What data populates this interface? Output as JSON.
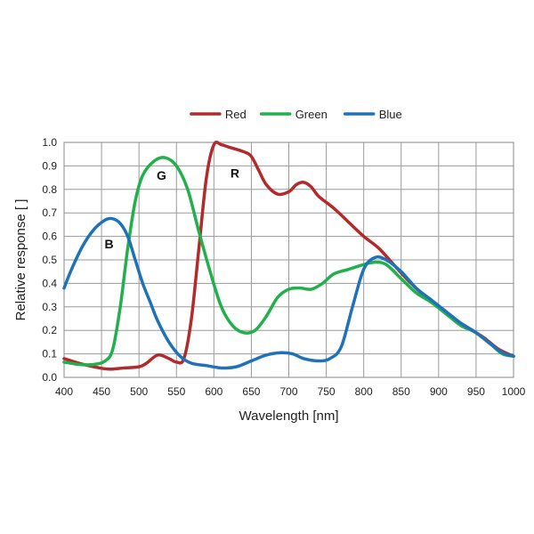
{
  "chart_data": {
    "type": "line",
    "title": "",
    "xlabel": "Wavelength [nm]",
    "ylabel": "Relative response [ ]",
    "xlim": [
      400,
      1000
    ],
    "ylim": [
      0,
      1
    ],
    "x_ticks": [
      400,
      450,
      500,
      550,
      600,
      650,
      700,
      750,
      800,
      850,
      900,
      950,
      1000
    ],
    "y_ticks": [
      0.0,
      0.1,
      0.2,
      0.3,
      0.4,
      0.5,
      0.6,
      0.7,
      0.8,
      0.9,
      1.0
    ],
    "x_tick_labels": [
      "400",
      "450",
      "500",
      "550",
      "600",
      "650",
      "700",
      "750",
      "800",
      "850",
      "900",
      "950",
      "1000"
    ],
    "y_tick_labels": [
      "0.0",
      "0.1",
      "0.2",
      "0.3",
      "0.4",
      "0.5",
      "0.6",
      "0.7",
      "0.8",
      "0.9",
      "1.0"
    ],
    "grid": true,
    "legend_position": "top-center",
    "series": [
      {
        "name": "Red",
        "color": "#b22a2a",
        "points": [
          [
            400,
            0.08
          ],
          [
            420,
            0.06
          ],
          [
            440,
            0.045
          ],
          [
            460,
            0.035
          ],
          [
            480,
            0.04
          ],
          [
            500,
            0.045
          ],
          [
            510,
            0.06
          ],
          [
            525,
            0.095
          ],
          [
            540,
            0.08
          ],
          [
            550,
            0.065
          ],
          [
            560,
            0.08
          ],
          [
            570,
            0.25
          ],
          [
            580,
            0.55
          ],
          [
            590,
            0.85
          ],
          [
            600,
            0.99
          ],
          [
            610,
            0.99
          ],
          [
            620,
            0.98
          ],
          [
            640,
            0.96
          ],
          [
            650,
            0.94
          ],
          [
            660,
            0.88
          ],
          [
            670,
            0.82
          ],
          [
            685,
            0.78
          ],
          [
            700,
            0.79
          ],
          [
            710,
            0.82
          ],
          [
            720,
            0.83
          ],
          [
            730,
            0.81
          ],
          [
            740,
            0.77
          ],
          [
            760,
            0.72
          ],
          [
            780,
            0.66
          ],
          [
            800,
            0.6
          ],
          [
            820,
            0.55
          ],
          [
            840,
            0.48
          ],
          [
            860,
            0.41
          ],
          [
            880,
            0.35
          ],
          [
            900,
            0.3
          ],
          [
            920,
            0.25
          ],
          [
            940,
            0.21
          ],
          [
            960,
            0.17
          ],
          [
            980,
            0.12
          ],
          [
            1000,
            0.09
          ]
        ]
      },
      {
        "name": "Green",
        "color": "#22b04c",
        "points": [
          [
            400,
            0.065
          ],
          [
            420,
            0.055
          ],
          [
            440,
            0.055
          ],
          [
            455,
            0.07
          ],
          [
            465,
            0.12
          ],
          [
            475,
            0.3
          ],
          [
            485,
            0.55
          ],
          [
            495,
            0.75
          ],
          [
            505,
            0.86
          ],
          [
            520,
            0.92
          ],
          [
            535,
            0.935
          ],
          [
            550,
            0.9
          ],
          [
            565,
            0.8
          ],
          [
            580,
            0.62
          ],
          [
            595,
            0.45
          ],
          [
            610,
            0.3
          ],
          [
            625,
            0.22
          ],
          [
            640,
            0.19
          ],
          [
            655,
            0.2
          ],
          [
            670,
            0.26
          ],
          [
            685,
            0.34
          ],
          [
            700,
            0.375
          ],
          [
            715,
            0.38
          ],
          [
            730,
            0.375
          ],
          [
            745,
            0.4
          ],
          [
            760,
            0.44
          ],
          [
            780,
            0.46
          ],
          [
            800,
            0.48
          ],
          [
            815,
            0.49
          ],
          [
            830,
            0.48
          ],
          [
            850,
            0.42
          ],
          [
            870,
            0.36
          ],
          [
            890,
            0.32
          ],
          [
            910,
            0.27
          ],
          [
            930,
            0.22
          ],
          [
            950,
            0.19
          ],
          [
            970,
            0.14
          ],
          [
            985,
            0.1
          ],
          [
            1000,
            0.09
          ]
        ]
      },
      {
        "name": "Blue",
        "color": "#1f72b8",
        "points": [
          [
            400,
            0.38
          ],
          [
            410,
            0.46
          ],
          [
            425,
            0.56
          ],
          [
            440,
            0.63
          ],
          [
            455,
            0.67
          ],
          [
            465,
            0.675
          ],
          [
            475,
            0.655
          ],
          [
            485,
            0.6
          ],
          [
            495,
            0.5
          ],
          [
            505,
            0.4
          ],
          [
            515,
            0.32
          ],
          [
            525,
            0.24
          ],
          [
            540,
            0.15
          ],
          [
            555,
            0.09
          ],
          [
            570,
            0.06
          ],
          [
            590,
            0.05
          ],
          [
            610,
            0.04
          ],
          [
            630,
            0.045
          ],
          [
            650,
            0.07
          ],
          [
            670,
            0.095
          ],
          [
            690,
            0.105
          ],
          [
            705,
            0.1
          ],
          [
            720,
            0.08
          ],
          [
            740,
            0.07
          ],
          [
            755,
            0.08
          ],
          [
            770,
            0.13
          ],
          [
            785,
            0.3
          ],
          [
            800,
            0.46
          ],
          [
            815,
            0.51
          ],
          [
            830,
            0.5
          ],
          [
            850,
            0.45
          ],
          [
            870,
            0.38
          ],
          [
            890,
            0.33
          ],
          [
            910,
            0.28
          ],
          [
            930,
            0.23
          ],
          [
            950,
            0.19
          ],
          [
            970,
            0.14
          ],
          [
            985,
            0.105
          ],
          [
            1000,
            0.09
          ]
        ]
      }
    ],
    "annotations": [
      {
        "text": "B",
        "x": 460,
        "y": 0.55
      },
      {
        "text": "G",
        "x": 530,
        "y": 0.84
      },
      {
        "text": "R",
        "x": 628,
        "y": 0.85
      }
    ]
  }
}
